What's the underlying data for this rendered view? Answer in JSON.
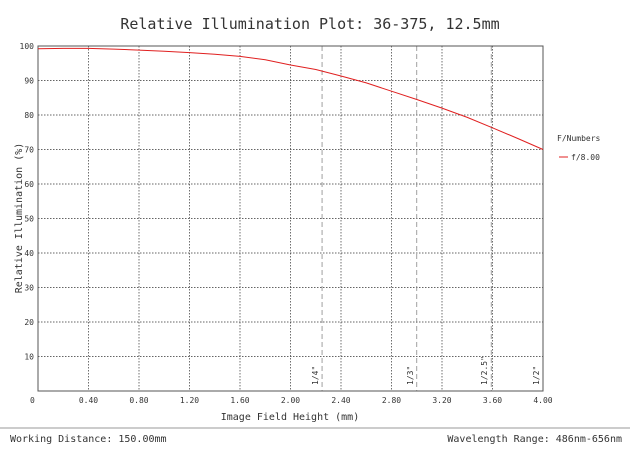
{
  "chart_data": {
    "type": "line",
    "title": "Relative Illumination Plot: 36-375, 12.5mm",
    "xlabel": "Image Field Height (mm)",
    "ylabel": "Relative Illumination (%)",
    "xlim": [
      0,
      4.0
    ],
    "ylim": [
      0,
      100
    ],
    "x_ticks": [
      {
        "value": 0,
        "label": "0"
      },
      {
        "value": 0.4,
        "label": "0.40"
      },
      {
        "value": 0.8,
        "label": "0.80"
      },
      {
        "value": 1.2,
        "label": "1.20"
      },
      {
        "value": 1.6,
        "label": "1.60"
      },
      {
        "value": 2.0,
        "label": "2.00"
      },
      {
        "value": 2.4,
        "label": "2.40"
      },
      {
        "value": 2.8,
        "label": "2.80"
      },
      {
        "value": 3.2,
        "label": "3.20"
      },
      {
        "value": 3.6,
        "label": "3.60"
      },
      {
        "value": 4.0,
        "label": "4.00"
      }
    ],
    "y_ticks": [
      {
        "value": 10,
        "label": "10"
      },
      {
        "value": 20,
        "label": "20"
      },
      {
        "value": 30,
        "label": "30"
      },
      {
        "value": 40,
        "label": "40"
      },
      {
        "value": 50,
        "label": "50"
      },
      {
        "value": 60,
        "label": "60"
      },
      {
        "value": 70,
        "label": "70"
      },
      {
        "value": 80,
        "label": "80"
      },
      {
        "value": 90,
        "label": "90"
      },
      {
        "value": 100,
        "label": "100"
      }
    ],
    "grid": true,
    "legend": {
      "title": "F/Numbers",
      "placement": "right"
    },
    "series": [
      {
        "name": "f/8.00",
        "color": "#e02020",
        "x": [
          0,
          0.2,
          0.4,
          0.6,
          0.8,
          1.0,
          1.2,
          1.4,
          1.6,
          1.8,
          2.0,
          2.2,
          2.4,
          2.6,
          2.8,
          3.0,
          3.2,
          3.4,
          3.6,
          3.8,
          4.0
        ],
        "y": [
          99.2,
          99.3,
          99.3,
          99.1,
          98.8,
          98.5,
          98.1,
          97.6,
          97.0,
          96.0,
          94.5,
          93.2,
          91.3,
          89.3,
          86.9,
          84.5,
          82.0,
          79.3,
          76.3,
          73.2,
          70.0
        ]
      }
    ],
    "sensor_markers": [
      {
        "label": "1/4\"",
        "x": 2.25
      },
      {
        "label": "1/3\"",
        "x": 3.0
      },
      {
        "label": "1/2.5\"",
        "x": 3.59
      },
      {
        "label": "1/2\"",
        "x": 4.0
      }
    ]
  },
  "footer": {
    "working_distance": "Working Distance: 150.00mm",
    "wavelength_range": "Wavelength Range: 486nm-656nm"
  }
}
